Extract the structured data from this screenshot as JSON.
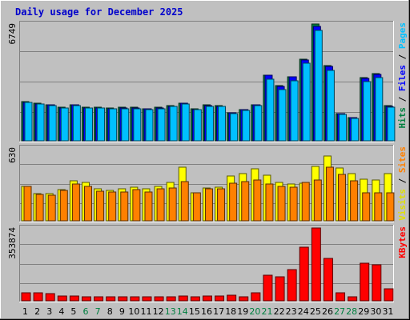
{
  "chart_data": {
    "type": "bar",
    "title": "Daily usage for December 2025",
    "categories": [
      "1",
      "2",
      "3",
      "4",
      "5",
      "6",
      "7",
      "8",
      "9",
      "10",
      "11",
      "12",
      "13",
      "14",
      "15",
      "16",
      "17",
      "18",
      "19",
      "20",
      "21",
      "22",
      "23",
      "24",
      "25",
      "26",
      "27",
      "28",
      "29",
      "30",
      "31"
    ],
    "weekend_days": [
      "6",
      "7",
      "13",
      "14",
      "20",
      "21",
      "27",
      "28"
    ],
    "panels": [
      {
        "name": "traffic",
        "ymax_label": "6749",
        "ylim": [
          0,
          6749
        ],
        "side_labels": [
          {
            "text": "Hits",
            "color": "#008040"
          },
          {
            "text": "Files",
            "color": "#0000ff"
          },
          {
            "text": "Pages",
            "color": "#00c0ff"
          }
        ],
        "series": [
          {
            "name": "Hits",
            "color": "#008040",
            "values": [
              2260,
              2180,
              2100,
              1950,
              2100,
              1940,
              1950,
              1900,
              1920,
              1920,
              1870,
              1920,
              2050,
              2190,
              1850,
              2060,
              2040,
              1640,
              1820,
              2100,
              3810,
              3200,
              3720,
              4730,
              6749,
              4330,
              1590,
              1360,
              3650,
              3880,
              2020
            ]
          },
          {
            "name": "Files",
            "color": "#0000ff",
            "values": [
              2220,
              2140,
              2060,
              1910,
              2060,
              1900,
              1910,
              1860,
              1880,
              1880,
              1830,
              1880,
              2010,
              2150,
              1810,
              2020,
              2000,
              1600,
              1780,
              2060,
              3770,
              3160,
              3680,
              4690,
              6600,
              4290,
              1550,
              1320,
              3610,
              3840,
              1980
            ]
          },
          {
            "name": "Pages",
            "color": "#00c0ff",
            "values": [
              2200,
              2120,
              2040,
              1890,
              2040,
              1880,
              1890,
              1840,
              1860,
              1860,
              1810,
              1860,
              1990,
              2130,
              1790,
              2000,
              1980,
              1580,
              1760,
              2040,
              3570,
              2960,
              3480,
              4490,
              6400,
              4090,
              1530,
              1300,
              3410,
              3640,
              1960
            ]
          }
        ]
      },
      {
        "name": "visits",
        "ymax_label": "630",
        "ylim": [
          0,
          630
        ],
        "side_labels": [
          {
            "text": "Visits",
            "color": "#e0e000"
          },
          {
            "text": "Sites",
            "color": "#ff8000"
          }
        ],
        "series": [
          {
            "name": "Visits",
            "color": "#ffff00",
            "values": [
              300,
              235,
              235,
              270,
              345,
              330,
              275,
              265,
              280,
              290,
              275,
              300,
              335,
              465,
              245,
              285,
              290,
              385,
              410,
              450,
              395,
              330,
              320,
              325,
              470,
              560,
              455,
              405,
              360,
              355,
              405
            ]
          },
          {
            "name": "Sites",
            "color": "#ff8000",
            "values": [
              300,
              230,
              220,
              265,
              315,
              300,
              255,
              250,
              250,
              270,
              250,
              280,
              285,
              340,
              240,
              275,
              275,
              325,
              340,
              350,
              320,
              300,
              290,
              330,
              350,
              465,
              400,
              345,
              245,
              245,
              245
            ]
          }
        ]
      },
      {
        "name": "kbytes",
        "ymax_label": "353874",
        "ylim": [
          0,
          353874
        ],
        "side_labels": [
          {
            "text": "KBytes",
            "color": "#ff0000"
          }
        ],
        "series": [
          {
            "name": "KBytes",
            "color": "#ff0000",
            "values": [
              38000,
              37000,
              36000,
              25000,
              25000,
              21000,
              21000,
              21000,
              21000,
              21000,
              20000,
              21000,
              21000,
              24000,
              20000,
              22000,
              24000,
              27000,
              20000,
              39000,
              123000,
              117000,
              150000,
              261000,
              353874,
              205000,
              38000,
              20000,
              182000,
              175000,
              60000
            ]
          }
        ]
      }
    ]
  }
}
